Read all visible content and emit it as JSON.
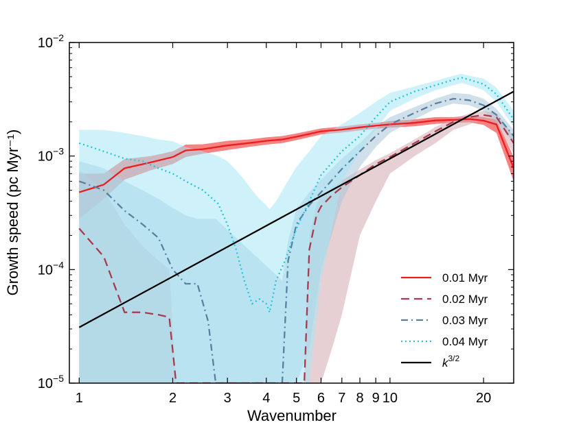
{
  "chart_data": {
    "type": "line",
    "xscale": "log",
    "yscale": "log",
    "xlim": [
      0.93,
      25
    ],
    "ylim": [
      1e-05,
      0.01
    ],
    "xlabel": "Wavenumber",
    "ylabel": "Growth speed (pc Myr⁻¹)",
    "x_ticks": [
      {
        "value": 1,
        "label": "1"
      },
      {
        "value": 2,
        "label": "2"
      },
      {
        "value": 3,
        "label": "3"
      },
      {
        "value": 4,
        "label": "4"
      },
      {
        "value": 5,
        "label": "5"
      },
      {
        "value": 6,
        "label": "6"
      },
      {
        "value": 7,
        "label": "7"
      },
      {
        "value": 8,
        "label": "8"
      },
      {
        "value": 9,
        "label": "9"
      },
      {
        "value": 10,
        "label": "10"
      },
      {
        "value": 20,
        "label": "20"
      }
    ],
    "y_ticks": [
      {
        "value": 1e-05,
        "base": "10",
        "exp": "−5"
      },
      {
        "value": 0.0001,
        "base": "10",
        "exp": "−4"
      },
      {
        "value": 0.001,
        "base": "10",
        "exp": "−3"
      },
      {
        "value": 0.01,
        "base": "10",
        "exp": "−2"
      }
    ],
    "legend_position": "bottom-right",
    "series": [
      {
        "name": "0.01 Myr",
        "color": "#ee1c1c",
        "dash": "solid",
        "x": [
          1,
          1.2,
          1.4,
          1.7,
          2,
          2.2,
          2.5,
          3,
          3.5,
          4,
          4.5,
          5,
          6,
          7,
          8,
          9,
          10,
          12,
          14,
          16,
          18,
          20,
          22,
          25
        ],
        "values": [
          0.00048,
          0.00056,
          0.00078,
          0.00088,
          0.00098,
          0.00112,
          0.00115,
          0.00124,
          0.0013,
          0.00136,
          0.0014,
          0.00148,
          0.00165,
          0.00171,
          0.00179,
          0.00185,
          0.0019,
          0.00196,
          0.00206,
          0.00208,
          0.00212,
          0.00205,
          0.0019,
          0.00078
        ],
        "band_low": [
          0.00028,
          0.00042,
          0.00062,
          0.00075,
          0.00085,
          0.00098,
          0.00105,
          0.00113,
          0.0012,
          0.00126,
          0.0013,
          0.00138,
          0.00155,
          0.00161,
          0.00168,
          0.00174,
          0.00178,
          0.00183,
          0.00192,
          0.00196,
          0.00198,
          0.00188,
          0.0016,
          0.0006
        ],
        "band_high": [
          0.0007,
          0.0007,
          0.00094,
          0.001,
          0.0011,
          0.00126,
          0.00127,
          0.00136,
          0.0014,
          0.00146,
          0.0015,
          0.00158,
          0.00175,
          0.00182,
          0.0019,
          0.00196,
          0.00203,
          0.0021,
          0.0022,
          0.0022,
          0.00226,
          0.0022,
          0.0021,
          0.00098
        ]
      },
      {
        "name": "0.02 Myr",
        "color": "#a63a4e",
        "band_color": "#d4a9ae",
        "dash": "dashed",
        "x": [
          1,
          1.2,
          1.4,
          1.6,
          1.8,
          1.95,
          2.05,
          5.3,
          5.5,
          5.8,
          6,
          6.5,
          7,
          8,
          9,
          10,
          12,
          14,
          16,
          18,
          20,
          22,
          25
        ],
        "values": [
          0.00023,
          0.00013,
          4.2e-05,
          4.2e-05,
          4e-05,
          3.8e-05,
          1e-05,
          1e-05,
          0.00015,
          0.0003,
          0.00036,
          0.00045,
          0.00053,
          0.00068,
          0.00085,
          0.00098,
          0.0013,
          0.00165,
          0.002,
          0.0022,
          0.0023,
          0.0022,
          0.0013
        ],
        "band_low": [
          1e-05,
          1e-05,
          1e-05,
          1e-05,
          1e-05,
          1e-05,
          1e-05,
          1e-05,
          1e-05,
          1e-05,
          1e-05,
          2e-05,
          4e-05,
          0.0002,
          0.0004,
          0.0007,
          0.001,
          0.0013,
          0.0017,
          0.0019,
          0.0021,
          0.0019,
          0.00105
        ],
        "band_high": [
          0.00075,
          0.0005,
          0.00025,
          0.00016,
          0.00012,
          0.0001,
          1e-05,
          1e-05,
          0.0002,
          0.00037,
          0.00044,
          0.00052,
          0.00061,
          0.00076,
          0.00092,
          0.00106,
          0.0014,
          0.0018,
          0.00215,
          0.00237,
          0.0025,
          0.0024,
          0.0015
        ]
      },
      {
        "name": "0.03 Myr",
        "color": "#5b7f9e",
        "band_color": "#a8c6d8",
        "dash": "dashdot",
        "x": [
          1,
          1.2,
          1.4,
          1.6,
          1.8,
          2,
          2.2,
          2.4,
          2.6,
          2.75,
          4.5,
          4.7,
          5,
          5.5,
          6,
          7,
          8,
          9,
          10,
          12,
          14,
          16,
          18,
          20,
          22,
          25
        ],
        "values": [
          0.0006,
          0.0005,
          0.00033,
          0.00025,
          0.00019,
          0.0001,
          7.5e-05,
          7.5e-05,
          3.5e-05,
          1e-05,
          1e-05,
          0.00012,
          0.00025,
          0.00037,
          0.00048,
          0.00077,
          0.0011,
          0.0015,
          0.0019,
          0.0024,
          0.0029,
          0.0032,
          0.0031,
          0.0028,
          0.0023,
          0.0015
        ],
        "band_low": [
          1e-05,
          1e-05,
          1e-05,
          1e-05,
          1e-05,
          1e-05,
          1e-05,
          1e-05,
          1e-05,
          1e-05,
          1e-05,
          1e-05,
          1e-05,
          2e-05,
          0.0001,
          0.0004,
          0.0008,
          0.0012,
          0.0016,
          0.0021,
          0.0026,
          0.0029,
          0.0028,
          0.0025,
          0.002,
          0.0013
        ],
        "band_high": [
          0.0009,
          0.00078,
          0.0006,
          0.0005,
          0.00042,
          0.00035,
          0.0003,
          0.00028,
          0.00028,
          0.00028,
          8e-05,
          0.00018,
          0.00034,
          0.00048,
          0.00062,
          0.00095,
          0.0013,
          0.0018,
          0.0022,
          0.0027,
          0.0032,
          0.0036,
          0.0035,
          0.0032,
          0.0026,
          0.0017
        ]
      },
      {
        "name": "0.04 Myr",
        "color": "#22c5e0",
        "band_color": "#a8e6f6",
        "dash": "dotted",
        "x": [
          1,
          1.2,
          1.4,
          1.6,
          1.8,
          2,
          2.2,
          2.5,
          2.8,
          3,
          3.2,
          3.4,
          3.6,
          3.8,
          4,
          4.1,
          4.3,
          4.6,
          5,
          5.5,
          6,
          7,
          8,
          9,
          10,
          12,
          14,
          16,
          17,
          18,
          20,
          22,
          25
        ],
        "values": [
          0.0013,
          0.0011,
          0.00095,
          0.0009,
          0.00078,
          0.0007,
          0.0006,
          0.0005,
          0.00038,
          0.00025,
          0.00015,
          8e-05,
          5e-05,
          5.5e-05,
          5e-05,
          4.2e-05,
          8e-05,
          0.00012,
          0.00023,
          0.0004,
          0.00068,
          0.0011,
          0.0015,
          0.0022,
          0.003,
          0.0037,
          0.0042,
          0.0047,
          0.0049,
          0.0047,
          0.0043,
          0.0035,
          0.0021
        ],
        "band_low": [
          1e-05,
          1e-05,
          1e-05,
          1e-05,
          1e-05,
          1e-05,
          1e-05,
          1e-05,
          1e-05,
          1e-05,
          1e-05,
          1e-05,
          1e-05,
          1e-05,
          1e-05,
          1e-05,
          1e-05,
          1e-05,
          1e-05,
          1e-05,
          8e-05,
          0.0006,
          0.0011,
          0.0017,
          0.0025,
          0.0032,
          0.0038,
          0.0042,
          0.0044,
          0.0042,
          0.0038,
          0.003,
          0.0018
        ],
        "band_high": [
          0.0017,
          0.0017,
          0.0016,
          0.0015,
          0.0014,
          0.00135,
          0.0012,
          0.0011,
          0.001,
          0.0009,
          0.00075,
          0.00062,
          0.0005,
          0.00042,
          0.00037,
          0.00034,
          0.0004,
          0.00055,
          0.0008,
          0.0011,
          0.0015,
          0.0019,
          0.0024,
          0.003,
          0.0036,
          0.0041,
          0.0046,
          0.0051,
          0.0053,
          0.0051,
          0.0048,
          0.004,
          0.0025
        ]
      },
      {
        "name": "k^{3/2}",
        "label_base": "k",
        "label_exp": "3/2",
        "color": "#000000",
        "dash": "solid",
        "x": [
          1,
          25
        ],
        "values": [
          3.1e-05,
          0.0037
        ]
      }
    ]
  }
}
